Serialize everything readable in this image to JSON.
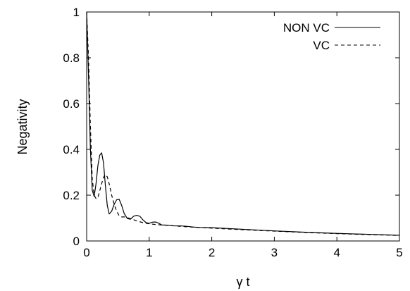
{
  "chart_data": {
    "type": "line",
    "title": "",
    "xlabel": "γ t",
    "ylabel": "Negativity",
    "xlim": [
      0,
      5
    ],
    "ylim": [
      0,
      1
    ],
    "xticks": [
      "0",
      "1",
      "2",
      "3",
      "4",
      "5"
    ],
    "yticks": [
      "0",
      "0.2",
      "0.4",
      "0.6",
      "0.8",
      "1"
    ],
    "grid": false,
    "legend_position": "top-right",
    "series": [
      {
        "name": "NON VC",
        "style": "solid",
        "color": "#000000",
        "x": [
          0,
          0.03,
          0.06,
          0.09,
          0.12,
          0.15,
          0.18,
          0.21,
          0.24,
          0.27,
          0.3,
          0.33,
          0.36,
          0.4,
          0.44,
          0.48,
          0.52,
          0.56,
          0.6,
          0.65,
          0.7,
          0.75,
          0.8,
          0.85,
          0.9,
          0.95,
          1.0,
          1.05,
          1.1,
          1.15,
          1.2,
          1.3,
          1.4,
          1.5,
          1.6,
          1.7,
          1.8,
          2.0,
          2.5,
          3.0,
          3.5,
          4.0,
          4.5,
          5.0
        ],
        "y": [
          1.0,
          0.72,
          0.4,
          0.22,
          0.195,
          0.25,
          0.33,
          0.375,
          0.385,
          0.34,
          0.24,
          0.155,
          0.118,
          0.13,
          0.16,
          0.18,
          0.182,
          0.155,
          0.12,
          0.098,
          0.095,
          0.108,
          0.112,
          0.108,
          0.092,
          0.08,
          0.077,
          0.082,
          0.083,
          0.078,
          0.07,
          0.069,
          0.066,
          0.066,
          0.064,
          0.061,
          0.059,
          0.058,
          0.051,
          0.044,
          0.038,
          0.033,
          0.029,
          0.025
        ]
      },
      {
        "name": "VC",
        "style": "dashed",
        "color": "#000000",
        "x": [
          0,
          0.03,
          0.06,
          0.09,
          0.12,
          0.15,
          0.18,
          0.21,
          0.24,
          0.27,
          0.3,
          0.33,
          0.36,
          0.4,
          0.44,
          0.48,
          0.52,
          0.56,
          0.6,
          0.7,
          0.8,
          0.9,
          1.0,
          1.1,
          1.2,
          1.4,
          1.6,
          1.8,
          2.0,
          2.5,
          3.0,
          3.5,
          4.0,
          4.5,
          5.0
        ],
        "y": [
          1.0,
          0.8,
          0.5,
          0.27,
          0.2,
          0.185,
          0.19,
          0.22,
          0.25,
          0.278,
          0.29,
          0.28,
          0.25,
          0.2,
          0.16,
          0.13,
          0.11,
          0.105,
          0.105,
          0.098,
          0.088,
          0.08,
          0.075,
          0.072,
          0.07,
          0.066,
          0.062,
          0.059,
          0.056,
          0.049,
          0.043,
          0.037,
          0.032,
          0.028,
          0.024
        ]
      }
    ]
  }
}
